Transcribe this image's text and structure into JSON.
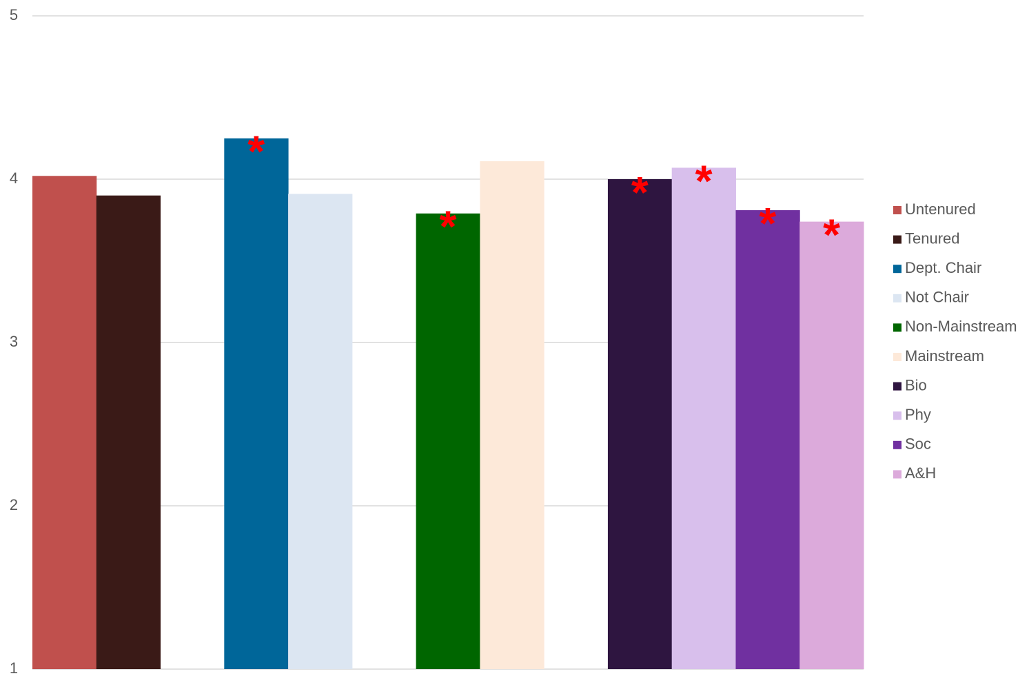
{
  "chart_data": {
    "type": "bar",
    "categories": [
      null,
      null,
      null,
      null,
      null,
      null,
      null,
      null,
      null,
      null,
      null,
      null,
      null
    ],
    "series": [
      {
        "name": "Untenured",
        "color": "#c0504d",
        "values": [
          4.02,
          null,
          null,
          null,
          null,
          null,
          null,
          null,
          null,
          null,
          null,
          null,
          null
        ]
      },
      {
        "name": "Tenured",
        "color": "#3a1a17",
        "values": [
          null,
          3.9,
          null,
          null,
          null,
          null,
          null,
          null,
          null,
          null,
          null,
          null,
          null
        ]
      },
      {
        "name": "Dept. Chair",
        "color": "#006699",
        "values": [
          null,
          null,
          null,
          4.25,
          null,
          null,
          null,
          null,
          null,
          null,
          null,
          null,
          null
        ]
      },
      {
        "name": "Not Chair",
        "color": "#dce6f2",
        "values": [
          null,
          null,
          null,
          null,
          3.91,
          null,
          null,
          null,
          null,
          null,
          null,
          null,
          null
        ]
      },
      {
        "name": "Non-Mainstream",
        "color": "#006600",
        "values": [
          null,
          null,
          null,
          null,
          null,
          null,
          3.79,
          null,
          null,
          null,
          null,
          null,
          null
        ]
      },
      {
        "name": "Mainstream",
        "color": "#fde9d9",
        "values": [
          null,
          null,
          null,
          null,
          null,
          null,
          null,
          4.11,
          null,
          null,
          null,
          null,
          null
        ]
      },
      {
        "name": "Bio",
        "color": "#2e1540",
        "values": [
          null,
          null,
          null,
          null,
          null,
          null,
          null,
          null,
          null,
          4.0,
          null,
          null,
          null
        ]
      },
      {
        "name": "Phy",
        "color": "#d8bfec",
        "values": [
          null,
          null,
          null,
          null,
          null,
          null,
          null,
          null,
          null,
          null,
          4.07,
          null,
          null
        ]
      },
      {
        "name": "Soc",
        "color": "#7030a0",
        "values": [
          null,
          null,
          null,
          null,
          null,
          null,
          null,
          null,
          null,
          null,
          null,
          3.81,
          null
        ]
      },
      {
        "name": "A&H",
        "color": "#dcaadb",
        "values": [
          null,
          null,
          null,
          null,
          null,
          null,
          null,
          null,
          null,
          null,
          null,
          null,
          3.74
        ]
      }
    ],
    "annotations": [
      {
        "text": "*",
        "series": 2
      },
      {
        "text": "*",
        "series": 4
      },
      {
        "text": "*",
        "series": 6
      },
      {
        "text": "*",
        "series": 7
      },
      {
        "text": "*",
        "series": 8
      },
      {
        "text": "*",
        "series": 9
      }
    ],
    "ylim": [
      1,
      5
    ],
    "yticks": [
      1,
      2,
      3,
      4,
      5
    ],
    "grid": true,
    "legend": "right"
  }
}
